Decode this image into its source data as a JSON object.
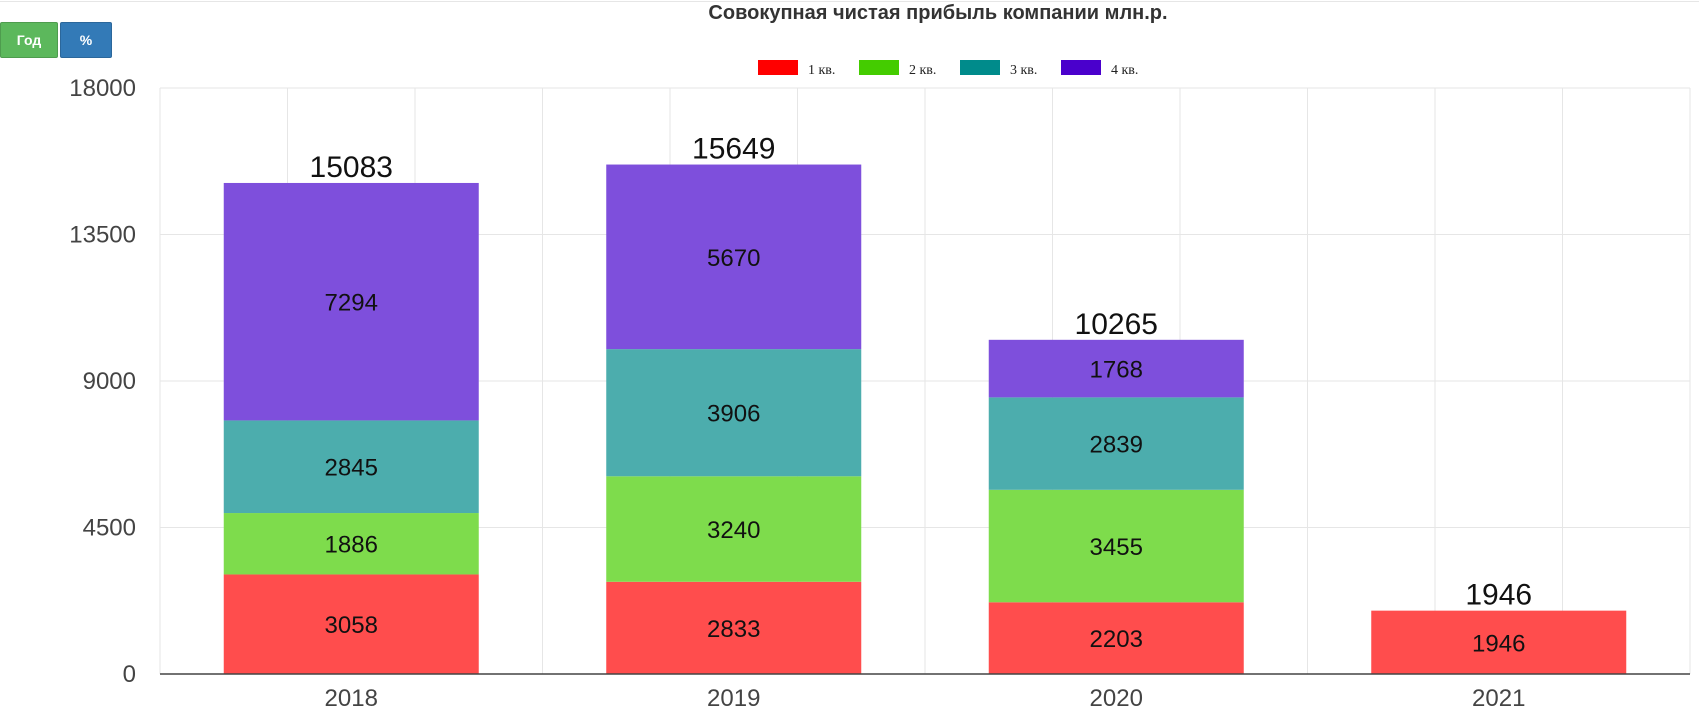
{
  "toolbar": {
    "year_label": "Год",
    "percent_label": "%"
  },
  "chart_data": {
    "type": "bar",
    "stacked": true,
    "title": "Совокупная чистая прибыль компании млн.р.",
    "categories": [
      "2018",
      "2019",
      "2020",
      "2021"
    ],
    "series": [
      {
        "name": "1 кв.",
        "legend_color": "#ff0000",
        "bar_color": "#ff4d4d",
        "values": [
          3058,
          2833,
          2203,
          1946
        ]
      },
      {
        "name": "2 кв.",
        "legend_color": "#44cc00",
        "bar_color": "#7edc4c",
        "values": [
          1886,
          3240,
          3455,
          null
        ]
      },
      {
        "name": "3 кв.",
        "legend_color": "#008b8b",
        "bar_color": "#4cadad",
        "values": [
          2845,
          3906,
          2839,
          null
        ]
      },
      {
        "name": "4 кв.",
        "legend_color": "#4a00cc",
        "bar_color": "#7e4fdc",
        "values": [
          7294,
          5670,
          1768,
          null
        ]
      }
    ],
    "totals": [
      15083,
      15649,
      10265,
      1946
    ],
    "ylim": [
      0,
      18000
    ],
    "yticks": [
      "0",
      "4500",
      "9000",
      "13500",
      "18000"
    ],
    "grid": true,
    "legend_position": "top-center",
    "xlabel": "",
    "ylabel": ""
  }
}
